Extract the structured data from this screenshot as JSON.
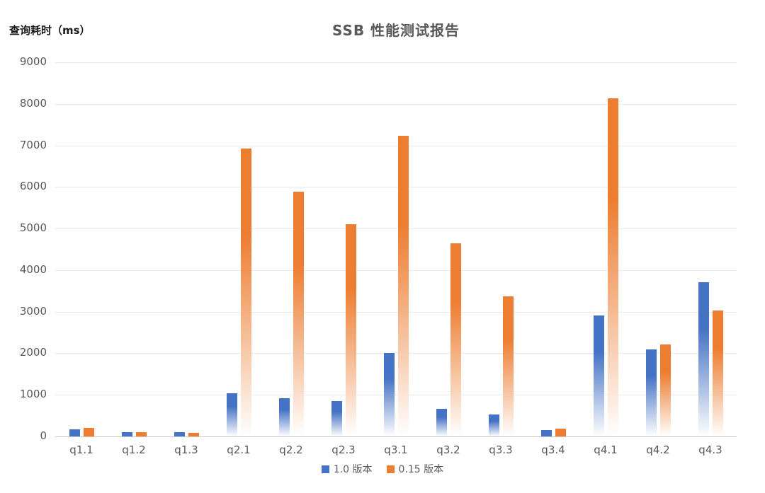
{
  "title": "SSB 性能测试报告",
  "y_axis_title": "查询耗时（ms）",
  "colors": {
    "series_blue": "#4472C4",
    "series_orange": "#ED7D31",
    "gridline": "#e9e9e9",
    "axis_line": "#c9c9c9",
    "tick_text": "#595959",
    "title_text": "#595959"
  },
  "legend": {
    "entries": [
      {
        "label": "1.0 版本",
        "color": "#4472C4"
      },
      {
        "label": "0.15 版本",
        "color": "#ED7D31"
      }
    ]
  },
  "chart_data": {
    "type": "bar",
    "title": "SSB 性能测试报告",
    "xlabel": "",
    "ylabel": "查询耗时（ms）",
    "categories": [
      "q1.1",
      "q1.2",
      "q1.3",
      "q2.1",
      "q2.2",
      "q2.3",
      "q3.1",
      "q3.2",
      "q3.3",
      "q3.4",
      "q4.1",
      "q4.2",
      "q4.3"
    ],
    "series": [
      {
        "name": "1.0 版本",
        "color": "#4472C4",
        "values": [
          170,
          110,
          110,
          1040,
          920,
          850,
          2010,
          660,
          520,
          150,
          2910,
          2100,
          3710
        ]
      },
      {
        "name": "0.15 版本",
        "color": "#ED7D31",
        "values": [
          210,
          110,
          90,
          6920,
          5890,
          5100,
          7230,
          4640,
          3370,
          190,
          8130,
          2210,
          3030
        ]
      }
    ],
    "ylim": [
      0,
      9000
    ],
    "yticks": [
      0,
      1000,
      2000,
      3000,
      4000,
      5000,
      6000,
      7000,
      8000,
      9000
    ],
    "grid": true,
    "legend_position": "bottom",
    "bar_style": "gradient-fade-to-white-at-base"
  }
}
